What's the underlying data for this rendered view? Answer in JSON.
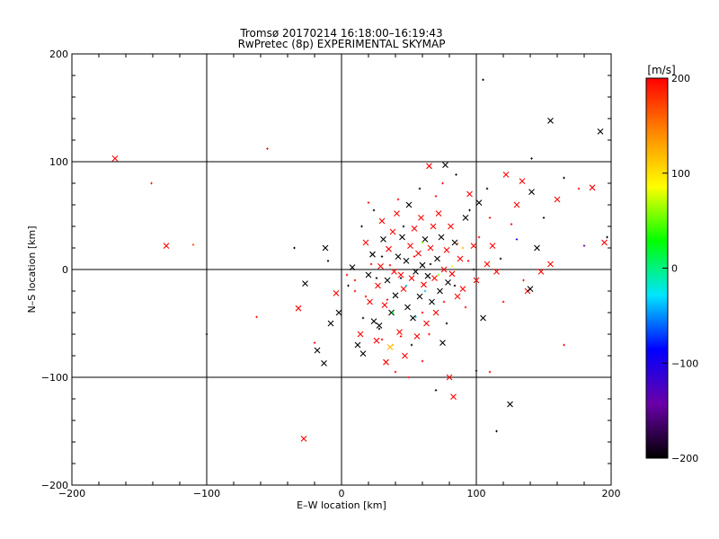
{
  "chart_data": {
    "type": "scatter",
    "title": "Tromsø 20170214 16:18:00–16:19:43",
    "subtitle": "RwPretec (8p) EXPERIMENTAL SKYMAP",
    "xlabel": "E–W location [km]",
    "ylabel": "N–S location [km]",
    "xlim": [
      -200,
      200
    ],
    "ylim": [
      -200,
      200
    ],
    "x_ticks": [
      -200,
      -100,
      0,
      100,
      200
    ],
    "y_ticks": [
      -200,
      -100,
      0,
      100,
      200
    ],
    "x_tick_labels": [
      "−200",
      "−100",
      "0",
      "100",
      "200"
    ],
    "y_tick_labels": [
      "−200",
      "−100",
      "0",
      "100",
      "200"
    ],
    "grid": true,
    "colorbar": {
      "unit_label": "[m/s]",
      "range": [
        -200,
        200
      ],
      "ticks": [
        200,
        100,
        0,
        -100,
        -200
      ],
      "tick_labels": [
        "200",
        "100",
        "0",
        "−100",
        "−200"
      ],
      "colors": [
        "#000000",
        "#6a00a8",
        "#0000ff",
        "#00e5ff",
        "#00ff00",
        "#ffff00",
        "#ff8800",
        "#ff0000"
      ]
    },
    "points": [
      {
        "x": -168,
        "y": 103,
        "v": 200,
        "m": "x"
      },
      {
        "x": -141,
        "y": 80,
        "v": 190,
        "m": "+"
      },
      {
        "x": -130,
        "y": 22,
        "v": 200,
        "m": "x"
      },
      {
        "x": -110,
        "y": 23,
        "v": 170,
        "m": "+"
      },
      {
        "x": -63,
        "y": -44,
        "v": 190,
        "m": "+"
      },
      {
        "x": -55,
        "y": 112,
        "v": 200,
        "m": "+"
      },
      {
        "x": -100,
        "y": -60,
        "v": -200,
        "m": "+"
      },
      {
        "x": -35,
        "y": 20,
        "v": -200,
        "m": "+"
      },
      {
        "x": -32,
        "y": -36,
        "v": 200,
        "m": "x"
      },
      {
        "x": -28,
        "y": -157,
        "v": 200,
        "m": "x"
      },
      {
        "x": -27,
        "y": -13,
        "v": -200,
        "m": "x"
      },
      {
        "x": -20,
        "y": -68,
        "v": 200,
        "m": "+"
      },
      {
        "x": -18,
        "y": -75,
        "v": -200,
        "m": "x"
      },
      {
        "x": -13,
        "y": -87,
        "v": -200,
        "m": "x"
      },
      {
        "x": -12,
        "y": 20,
        "v": -200,
        "m": "x"
      },
      {
        "x": -8,
        "y": -50,
        "v": -200,
        "m": "x"
      },
      {
        "x": -4,
        "y": -22,
        "v": 200,
        "m": "x"
      },
      {
        "x": -2,
        "y": -40,
        "v": -200,
        "m": "x"
      },
      {
        "x": 8,
        "y": 2,
        "v": -200,
        "m": "x"
      },
      {
        "x": 10,
        "y": -10,
        "v": 200,
        "m": "+"
      },
      {
        "x": 12,
        "y": -70,
        "v": -200,
        "m": "x"
      },
      {
        "x": 14,
        "y": -60,
        "v": 200,
        "m": "x"
      },
      {
        "x": 16,
        "y": -78,
        "v": -200,
        "m": "x"
      },
      {
        "x": 18,
        "y": 25,
        "v": 200,
        "m": "x"
      },
      {
        "x": 20,
        "y": -5,
        "v": -200,
        "m": "x"
      },
      {
        "x": 21,
        "y": -30,
        "v": 200,
        "m": "x"
      },
      {
        "x": 23,
        "y": 14,
        "v": -200,
        "m": "x"
      },
      {
        "x": 24,
        "y": -48,
        "v": -200,
        "m": "x"
      },
      {
        "x": 26,
        "y": -66,
        "v": 200,
        "m": "x"
      },
      {
        "x": 27,
        "y": -15,
        "v": 200,
        "m": "x"
      },
      {
        "x": 28,
        "y": -52,
        "v": -200,
        "m": "x"
      },
      {
        "x": 29,
        "y": 3,
        "v": 200,
        "m": "x"
      },
      {
        "x": 30,
        "y": 45,
        "v": 200,
        "m": "x"
      },
      {
        "x": 31,
        "y": 28,
        "v": -200,
        "m": "x"
      },
      {
        "x": 32,
        "y": -33,
        "v": 200,
        "m": "x"
      },
      {
        "x": 33,
        "y": -86,
        "v": 200,
        "m": "x"
      },
      {
        "x": 34,
        "y": -10,
        "v": -200,
        "m": "x"
      },
      {
        "x": 35,
        "y": 19,
        "v": 200,
        "m": "x"
      },
      {
        "x": 36,
        "y": -72,
        "v": 120,
        "m": "x"
      },
      {
        "x": 37,
        "y": -40,
        "v": -200,
        "m": "x"
      },
      {
        "x": 38,
        "y": 35,
        "v": 200,
        "m": "x"
      },
      {
        "x": 39,
        "y": -2,
        "v": 200,
        "m": "x"
      },
      {
        "x": 40,
        "y": -24,
        "v": -200,
        "m": "x"
      },
      {
        "x": 41,
        "y": 52,
        "v": 200,
        "m": "x"
      },
      {
        "x": 42,
        "y": 12,
        "v": -200,
        "m": "x"
      },
      {
        "x": 43,
        "y": -58,
        "v": 200,
        "m": "x"
      },
      {
        "x": 44,
        "y": -5,
        "v": 200,
        "m": "x"
      },
      {
        "x": 45,
        "y": 30,
        "v": -200,
        "m": "x"
      },
      {
        "x": 46,
        "y": -18,
        "v": 200,
        "m": "x"
      },
      {
        "x": 47,
        "y": -80,
        "v": 200,
        "m": "x"
      },
      {
        "x": 48,
        "y": 8,
        "v": -200,
        "m": "x"
      },
      {
        "x": 49,
        "y": -35,
        "v": -200,
        "m": "x"
      },
      {
        "x": 50,
        "y": 60,
        "v": -200,
        "m": "x"
      },
      {
        "x": 51,
        "y": 22,
        "v": 200,
        "m": "x"
      },
      {
        "x": 52,
        "y": -8,
        "v": 200,
        "m": "x"
      },
      {
        "x": 53,
        "y": -45,
        "v": -200,
        "m": "x"
      },
      {
        "x": 54,
        "y": 38,
        "v": 200,
        "m": "x"
      },
      {
        "x": 55,
        "y": -2,
        "v": -200,
        "m": "x"
      },
      {
        "x": 56,
        "y": -62,
        "v": 200,
        "m": "x"
      },
      {
        "x": 57,
        "y": 15,
        "v": 200,
        "m": "x"
      },
      {
        "x": 58,
        "y": -25,
        "v": -200,
        "m": "x"
      },
      {
        "x": 59,
        "y": 48,
        "v": 200,
        "m": "x"
      },
      {
        "x": 60,
        "y": 4,
        "v": -200,
        "m": "x"
      },
      {
        "x": 61,
        "y": -14,
        "v": 200,
        "m": "x"
      },
      {
        "x": 62,
        "y": 28,
        "v": -200,
        "m": "x"
      },
      {
        "x": 63,
        "y": -50,
        "v": 200,
        "m": "x"
      },
      {
        "x": 64,
        "y": -6,
        "v": -200,
        "m": "x"
      },
      {
        "x": 65,
        "y": 96,
        "v": 200,
        "m": "x"
      },
      {
        "x": 66,
        "y": 20,
        "v": 200,
        "m": "x"
      },
      {
        "x": 67,
        "y": -30,
        "v": -200,
        "m": "x"
      },
      {
        "x": 68,
        "y": 40,
        "v": 200,
        "m": "x"
      },
      {
        "x": 69,
        "y": -8,
        "v": 200,
        "m": "x"
      },
      {
        "x": 70,
        "y": -40,
        "v": 200,
        "m": "x"
      },
      {
        "x": 71,
        "y": 10,
        "v": -200,
        "m": "x"
      },
      {
        "x": 72,
        "y": 52,
        "v": 200,
        "m": "x"
      },
      {
        "x": 73,
        "y": -20,
        "v": -200,
        "m": "x"
      },
      {
        "x": 74,
        "y": 30,
        "v": -200,
        "m": "x"
      },
      {
        "x": 75,
        "y": -68,
        "v": -200,
        "m": "x"
      },
      {
        "x": 76,
        "y": 0,
        "v": 200,
        "m": "x"
      },
      {
        "x": 77,
        "y": 97,
        "v": -200,
        "m": "x"
      },
      {
        "x": 78,
        "y": 18,
        "v": 200,
        "m": "x"
      },
      {
        "x": 79,
        "y": -12,
        "v": -200,
        "m": "x"
      },
      {
        "x": 80,
        "y": -100,
        "v": 200,
        "m": "x"
      },
      {
        "x": 81,
        "y": 40,
        "v": 200,
        "m": "x"
      },
      {
        "x": 82,
        "y": -4,
        "v": 200,
        "m": "x"
      },
      {
        "x": 83,
        "y": -118,
        "v": 200,
        "m": "x"
      },
      {
        "x": 84,
        "y": 25,
        "v": -200,
        "m": "x"
      },
      {
        "x": 86,
        "y": -25,
        "v": 200,
        "m": "x"
      },
      {
        "x": 88,
        "y": 10,
        "v": 200,
        "m": "x"
      },
      {
        "x": 90,
        "y": -18,
        "v": 200,
        "m": "x"
      },
      {
        "x": 92,
        "y": 48,
        "v": -200,
        "m": "x"
      },
      {
        "x": 95,
        "y": 70,
        "v": 200,
        "m": "x"
      },
      {
        "x": 98,
        "y": 22,
        "v": 200,
        "m": "x"
      },
      {
        "x": 100,
        "y": -10,
        "v": 200,
        "m": "x"
      },
      {
        "x": 102,
        "y": 62,
        "v": -200,
        "m": "x"
      },
      {
        "x": 105,
        "y": -45,
        "v": -200,
        "m": "x"
      },
      {
        "x": 108,
        "y": 5,
        "v": 200,
        "m": "x"
      },
      {
        "x": 112,
        "y": 22,
        "v": 200,
        "m": "x"
      },
      {
        "x": 115,
        "y": -2,
        "v": 200,
        "m": "x"
      },
      {
        "x": 122,
        "y": 88,
        "v": 200,
        "m": "x"
      },
      {
        "x": 125,
        "y": -125,
        "v": -200,
        "m": "x"
      },
      {
        "x": 130,
        "y": 60,
        "v": 200,
        "m": "x"
      },
      {
        "x": 134,
        "y": 82,
        "v": 200,
        "m": "x"
      },
      {
        "x": 138,
        "y": -20,
        "v": 200,
        "m": "x"
      },
      {
        "x": 140,
        "y": -18,
        "v": -200,
        "m": "x"
      },
      {
        "x": 141,
        "y": 72,
        "v": -200,
        "m": "x"
      },
      {
        "x": 145,
        "y": 20,
        "v": -200,
        "m": "x"
      },
      {
        "x": 148,
        "y": -2,
        "v": 200,
        "m": "x"
      },
      {
        "x": 155,
        "y": 138,
        "v": -200,
        "m": "x"
      },
      {
        "x": 155,
        "y": 5,
        "v": 200,
        "m": "x"
      },
      {
        "x": 160,
        "y": 65,
        "v": 200,
        "m": "x"
      },
      {
        "x": 186,
        "y": 76,
        "v": 200,
        "m": "x"
      },
      {
        "x": 192,
        "y": 128,
        "v": -200,
        "m": "x"
      },
      {
        "x": 195,
        "y": 25,
        "v": 200,
        "m": "x"
      },
      {
        "x": 105,
        "y": 176,
        "v": -200,
        "m": "+"
      },
      {
        "x": 115,
        "y": -150,
        "v": -200,
        "m": "+"
      },
      {
        "x": 110,
        "y": -95,
        "v": 200,
        "m": "+"
      },
      {
        "x": 141,
        "y": 103,
        "v": -200,
        "m": "+"
      },
      {
        "x": 165,
        "y": -70,
        "v": 200,
        "m": "+"
      },
      {
        "x": 176,
        "y": 75,
        "v": 200,
        "m": "+"
      },
      {
        "x": 180,
        "y": 22,
        "v": -140,
        "m": "+"
      },
      {
        "x": 197,
        "y": 30,
        "v": -200,
        "m": "+"
      },
      {
        "x": 165,
        "y": 85,
        "v": -200,
        "m": "+"
      },
      {
        "x": 150,
        "y": 48,
        "v": -200,
        "m": "+"
      },
      {
        "x": 130,
        "y": 28,
        "v": -100,
        "m": "+"
      },
      {
        "x": 135,
        "y": -10,
        "v": 200,
        "m": "+"
      },
      {
        "x": 120,
        "y": -30,
        "v": 200,
        "m": "+"
      },
      {
        "x": 100,
        "y": -94,
        "v": -200,
        "m": "+"
      },
      {
        "x": 70,
        "y": -112,
        "v": -200,
        "m": "+"
      },
      {
        "x": 50,
        "y": -100,
        "v": 200,
        "m": "+"
      },
      {
        "x": 40,
        "y": -95,
        "v": 200,
        "m": "+"
      },
      {
        "x": 38,
        "y": -70,
        "v": 120,
        "m": "+"
      },
      {
        "x": 28,
        "y": -55,
        "v": -200,
        "m": "+"
      },
      {
        "x": 44,
        "y": -62,
        "v": 200,
        "m": "+"
      },
      {
        "x": 55,
        "y": -44,
        "v": -40,
        "m": "+"
      },
      {
        "x": 48,
        "y": -15,
        "v": -40,
        "m": "+"
      },
      {
        "x": 62,
        "y": -20,
        "v": -40,
        "m": "+"
      },
      {
        "x": 60,
        "y": 25,
        "v": 60,
        "m": "+"
      },
      {
        "x": 38,
        "y": -40,
        "v": 20,
        "m": "+"
      },
      {
        "x": 72,
        "y": -5,
        "v": 60,
        "m": "+"
      },
      {
        "x": 82,
        "y": 3,
        "v": 80,
        "m": "+"
      },
      {
        "x": 90,
        "y": 20,
        "v": 120,
        "m": "+"
      },
      {
        "x": 86,
        "y": 24,
        "v": 160,
        "m": "+"
      },
      {
        "x": 20,
        "y": 62,
        "v": 200,
        "m": "+"
      },
      {
        "x": 24,
        "y": 55,
        "v": -200,
        "m": "+"
      },
      {
        "x": 15,
        "y": 40,
        "v": -200,
        "m": "+"
      },
      {
        "x": 42,
        "y": 65,
        "v": 200,
        "m": "+"
      },
      {
        "x": 58,
        "y": 75,
        "v": -200,
        "m": "+"
      },
      {
        "x": 75,
        "y": 80,
        "v": 200,
        "m": "+"
      },
      {
        "x": 85,
        "y": 88,
        "v": -200,
        "m": "+"
      },
      {
        "x": 70,
        "y": 68,
        "v": 200,
        "m": "+"
      },
      {
        "x": 95,
        "y": 55,
        "v": -200,
        "m": "+"
      },
      {
        "x": 108,
        "y": 75,
        "v": -200,
        "m": "+"
      },
      {
        "x": 10,
        "y": -20,
        "v": 200,
        "m": "+"
      },
      {
        "x": 5,
        "y": -15,
        "v": -200,
        "m": "+"
      },
      {
        "x": 18,
        "y": -25,
        "v": 200,
        "m": "+"
      },
      {
        "x": 22,
        "y": 5,
        "v": 200,
        "m": "+"
      },
      {
        "x": 30,
        "y": 12,
        "v": -200,
        "m": "+"
      },
      {
        "x": 34,
        "y": -28,
        "v": 200,
        "m": "+"
      },
      {
        "x": 46,
        "y": 40,
        "v": -200,
        "m": "+"
      },
      {
        "x": 52,
        "y": -70,
        "v": -200,
        "m": "+"
      },
      {
        "x": 65,
        "y": -60,
        "v": 200,
        "m": "+"
      },
      {
        "x": 78,
        "y": -50,
        "v": -200,
        "m": "+"
      },
      {
        "x": 92,
        "y": -35,
        "v": 200,
        "m": "+"
      },
      {
        "x": 102,
        "y": 30,
        "v": 200,
        "m": "+"
      },
      {
        "x": 118,
        "y": 10,
        "v": -200,
        "m": "+"
      },
      {
        "x": 126,
        "y": 42,
        "v": 200,
        "m": "+"
      },
      {
        "x": 110,
        "y": 48,
        "v": 200,
        "m": "+"
      },
      {
        "x": 98,
        "y": 0,
        "v": -200,
        "m": "+"
      },
      {
        "x": 60,
        "y": -85,
        "v": 200,
        "m": "+"
      },
      {
        "x": 30,
        "y": -65,
        "v": 200,
        "m": "+"
      },
      {
        "x": 16,
        "y": -45,
        "v": -200,
        "m": "+"
      },
      {
        "x": 4,
        "y": -5,
        "v": 200,
        "m": "+"
      },
      {
        "x": -10,
        "y": 8,
        "v": -200,
        "m": "+"
      },
      {
        "x": 66,
        "y": 5,
        "v": -200,
        "m": "+"
      },
      {
        "x": 54,
        "y": 12,
        "v": 200,
        "m": "+"
      },
      {
        "x": 44,
        "y": -8,
        "v": -200,
        "m": "+"
      },
      {
        "x": 36,
        "y": 4,
        "v": 200,
        "m": "+"
      },
      {
        "x": 26,
        "y": -8,
        "v": -200,
        "m": "+"
      },
      {
        "x": 76,
        "y": -30,
        "v": 200,
        "m": "+"
      },
      {
        "x": 84,
        "y": -15,
        "v": -200,
        "m": "+"
      },
      {
        "x": 94,
        "y": 8,
        "v": 200,
        "m": "+"
      },
      {
        "x": 60,
        "y": -40,
        "v": 200,
        "m": "+"
      }
    ]
  }
}
